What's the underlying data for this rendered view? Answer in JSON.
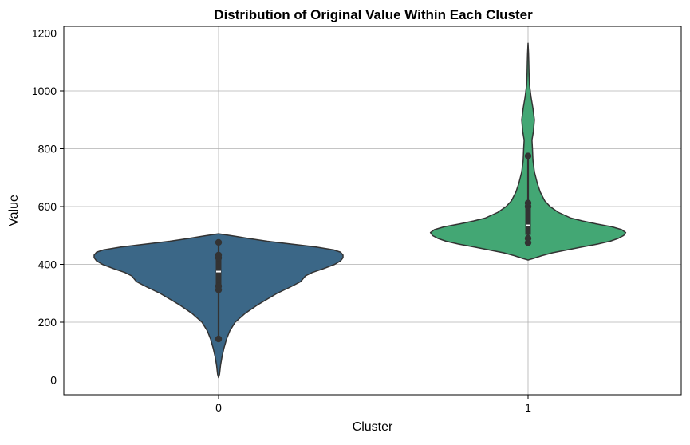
{
  "chart_data": {
    "type": "violin",
    "title": "Distribution of Original Value Within Each Cluster",
    "xlabel": "Cluster",
    "ylabel": "Value",
    "categories": [
      "0",
      "1"
    ],
    "ylim": [
      -50,
      1225
    ],
    "yticks": [
      0,
      200,
      400,
      600,
      800,
      1000,
      1200
    ],
    "grid": true,
    "violins": [
      {
        "category": "0",
        "color": "#3b6787",
        "density": [
          [
            8,
            0
          ],
          [
            20,
            2
          ],
          [
            50,
            4
          ],
          [
            80,
            7
          ],
          [
            110,
            11
          ],
          [
            140,
            16
          ],
          [
            170,
            23
          ],
          [
            200,
            34
          ],
          [
            230,
            54
          ],
          [
            260,
            80
          ],
          [
            280,
            100
          ],
          [
            300,
            120
          ],
          [
            320,
            145
          ],
          [
            340,
            168
          ],
          [
            360,
            178
          ],
          [
            372,
            192
          ],
          [
            385,
            215
          ],
          [
            400,
            238
          ],
          [
            412,
            250
          ],
          [
            423,
            255
          ],
          [
            432,
            255
          ],
          [
            442,
            250
          ],
          [
            450,
            236
          ],
          [
            460,
            200
          ],
          [
            470,
            150
          ],
          [
            480,
            100
          ],
          [
            490,
            60
          ],
          [
            497,
            35
          ],
          [
            502,
            15
          ],
          [
            506,
            0
          ]
        ],
        "box": {
          "q1": 327,
          "median": 375,
          "q3": 422
        },
        "whisker": {
          "low": 142,
          "high": 476
        },
        "points": [
          142,
          312,
          325,
          422,
          432,
          476
        ]
      },
      {
        "category": "1",
        "color": "#43a774",
        "density": [
          [
            415,
            0
          ],
          [
            420,
            10
          ],
          [
            430,
            28
          ],
          [
            440,
            50
          ],
          [
            450,
            80
          ],
          [
            460,
            110
          ],
          [
            470,
            142
          ],
          [
            480,
            168
          ],
          [
            490,
            185
          ],
          [
            500,
            196
          ],
          [
            510,
            200
          ],
          [
            520,
            192
          ],
          [
            530,
            172
          ],
          [
            540,
            140
          ],
          [
            550,
            112
          ],
          [
            560,
            88
          ],
          [
            580,
            62
          ],
          [
            600,
            45
          ],
          [
            620,
            34
          ],
          [
            650,
            25
          ],
          [
            680,
            19
          ],
          [
            720,
            13
          ],
          [
            760,
            10
          ],
          [
            800,
            9
          ],
          [
            830,
            8
          ],
          [
            860,
            11
          ],
          [
            900,
            13
          ],
          [
            940,
            10
          ],
          [
            980,
            6
          ],
          [
            1020,
            3
          ],
          [
            1060,
            2
          ],
          [
            1100,
            1.5
          ],
          [
            1130,
            1
          ],
          [
            1165,
            0
          ]
        ],
        "box": {
          "q1": 502,
          "median": 535,
          "q3": 608
        },
        "whisker": {
          "low": 475,
          "high": 775
        },
        "points": [
          475,
          490,
          600,
          612,
          775
        ]
      }
    ]
  }
}
